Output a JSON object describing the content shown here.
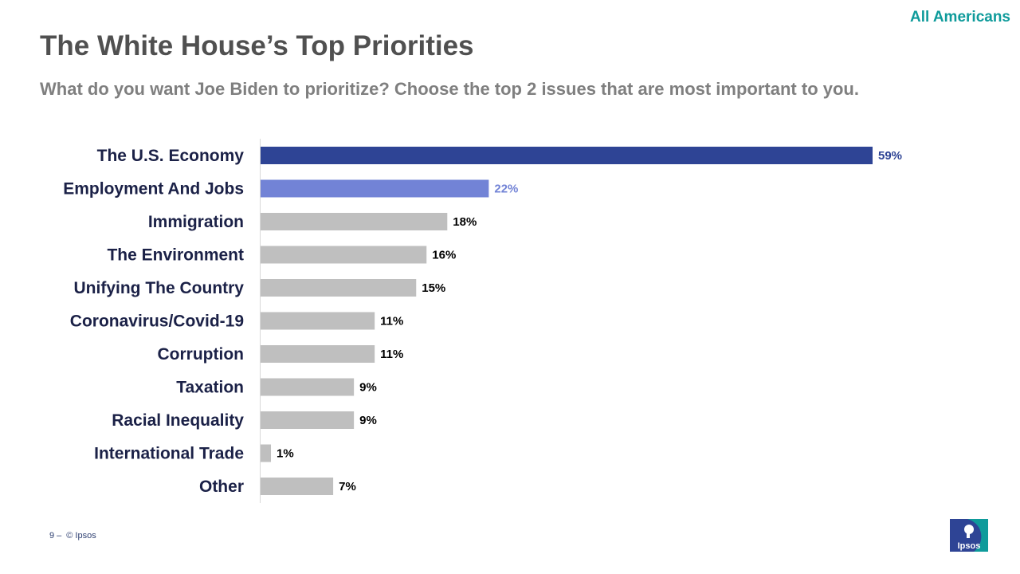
{
  "header": {
    "audience_label": "All Americans",
    "title": "The White House’s Top Priorities",
    "subtitle": "What do you want Joe Biden to prioritize? Choose the top 2 issues that are most important to you."
  },
  "footer": {
    "page_number": "9",
    "separator": "–",
    "copyright": "© Ipsos"
  },
  "logo": {
    "text": "Ipsos"
  },
  "colors": {
    "highlight_primary": "#2e4495",
    "highlight_secondary": "#7283d6",
    "default_bar": "#bfbfbf",
    "category_label": "#1b2147",
    "default_value_label": "#000000",
    "accent_teal": "#0f9b9b"
  },
  "chart_data": {
    "type": "bar",
    "orientation": "horizontal",
    "title": "",
    "xlabel": "",
    "ylabel": "",
    "xlim": [
      0,
      59
    ],
    "grid": false,
    "legend": "none",
    "categories": [
      "The U.S. Economy",
      "Employment And Jobs",
      "Immigration",
      "The Environment",
      "Unifying The Country",
      "Coronavirus/Covid-19",
      "Corruption",
      "Taxation",
      "Racial Inequality",
      "International Trade",
      "Other"
    ],
    "values": [
      59,
      22,
      18,
      16,
      15,
      11,
      11,
      9,
      9,
      1,
      7
    ],
    "value_labels": [
      "59%",
      "22%",
      "18%",
      "16%",
      "15%",
      "11%",
      "11%",
      "9%",
      "9%",
      "1%",
      "7%"
    ],
    "bar_colors": [
      "#2e4495",
      "#7283d6",
      "#bfbfbf",
      "#bfbfbf",
      "#bfbfbf",
      "#bfbfbf",
      "#bfbfbf",
      "#bfbfbf",
      "#bfbfbf",
      "#bfbfbf",
      "#bfbfbf"
    ],
    "label_colors": [
      "#2e4495",
      "#7283d6",
      "#000000",
      "#000000",
      "#000000",
      "#000000",
      "#000000",
      "#000000",
      "#000000",
      "#000000",
      "#000000"
    ]
  }
}
